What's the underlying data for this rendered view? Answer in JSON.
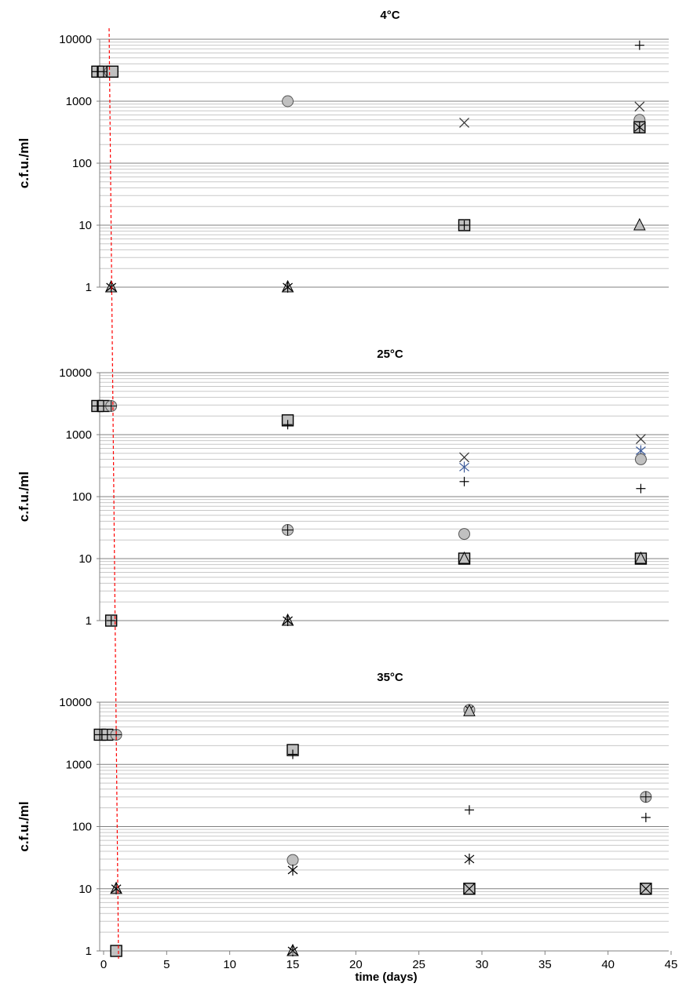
{
  "chart_data": {
    "type": "scatter",
    "xlabel": "time (days)",
    "x_ticks": [
      "0",
      "5",
      "10",
      "15",
      "20",
      "25",
      "30",
      "35",
      "40",
      "45"
    ],
    "xlim": [
      0,
      45
    ],
    "y_scale": "log",
    "y_ticks": [
      "1",
      "10",
      "100",
      "1000",
      "10000"
    ],
    "ylim": [
      1,
      10000
    ],
    "grid": true,
    "legend": "none",
    "reference_line": {
      "color": "#ff0000",
      "style": "dashed"
    },
    "panels": [
      {
        "title": "4°C",
        "ylabel": "c.f.u./ml",
        "points": [
          {
            "x": -0.5,
            "y": 3000,
            "marker": "square-plus"
          },
          {
            "x": 0,
            "y": 3000,
            "marker": "square-plus"
          },
          {
            "x": 0.5,
            "y": 3000,
            "marker": "circle-plus"
          },
          {
            "x": 0.7,
            "y": 3000,
            "marker": "square"
          },
          {
            "x": 0.6,
            "y": 1,
            "marker": "triangle"
          },
          {
            "x": 0.6,
            "y": 1,
            "marker": "star"
          },
          {
            "x": 14.6,
            "y": 1000,
            "marker": "circle"
          },
          {
            "x": 14.6,
            "y": 1,
            "marker": "triangle"
          },
          {
            "x": 14.6,
            "y": 1,
            "marker": "star"
          },
          {
            "x": 28.6,
            "y": 450,
            "marker": "x"
          },
          {
            "x": 28.6,
            "y": 10,
            "marker": "square"
          },
          {
            "x": 28.6,
            "y": 10,
            "marker": "plus"
          },
          {
            "x": 42.5,
            "y": 8000,
            "marker": "plus"
          },
          {
            "x": 42.5,
            "y": 820,
            "marker": "x"
          },
          {
            "x": 42.5,
            "y": 500,
            "marker": "circle"
          },
          {
            "x": 42.5,
            "y": 380,
            "marker": "square"
          },
          {
            "x": 42.5,
            "y": 380,
            "marker": "star"
          },
          {
            "x": 42.5,
            "y": 10,
            "marker": "triangle"
          }
        ]
      },
      {
        "title": "25°C",
        "ylabel": "c.f.u./ml",
        "points": [
          {
            "x": -0.5,
            "y": 2900,
            "marker": "square-plus"
          },
          {
            "x": 0,
            "y": 2900,
            "marker": "square-plus"
          },
          {
            "x": 0.6,
            "y": 2900,
            "marker": "circle-plus"
          },
          {
            "x": 0.6,
            "y": 1,
            "marker": "square"
          },
          {
            "x": 0.6,
            "y": 1,
            "marker": "plus"
          },
          {
            "x": 14.6,
            "y": 1700,
            "marker": "square"
          },
          {
            "x": 14.6,
            "y": 1450,
            "marker": "plus"
          },
          {
            "x": 14.6,
            "y": 29,
            "marker": "circle-plus"
          },
          {
            "x": 14.6,
            "y": 1,
            "marker": "triangle"
          },
          {
            "x": 14.6,
            "y": 1,
            "marker": "star"
          },
          {
            "x": 28.6,
            "y": 430,
            "marker": "x"
          },
          {
            "x": 28.6,
            "y": 300,
            "marker": "star-blue"
          },
          {
            "x": 28.6,
            "y": 175,
            "marker": "plus"
          },
          {
            "x": 28.6,
            "y": 25,
            "marker": "circle"
          },
          {
            "x": 28.6,
            "y": 10,
            "marker": "square"
          },
          {
            "x": 28.6,
            "y": 10,
            "marker": "triangle"
          },
          {
            "x": 42.6,
            "y": 850,
            "marker": "x"
          },
          {
            "x": 42.6,
            "y": 550,
            "marker": "star-blue"
          },
          {
            "x": 42.6,
            "y": 400,
            "marker": "circle"
          },
          {
            "x": 42.6,
            "y": 135,
            "marker": "plus"
          },
          {
            "x": 42.6,
            "y": 10,
            "marker": "square"
          },
          {
            "x": 42.6,
            "y": 10,
            "marker": "triangle"
          }
        ]
      },
      {
        "title": "35°C",
        "ylabel": "c.f.u./ml",
        "points": [
          {
            "x": -0.3,
            "y": 3000,
            "marker": "square-plus"
          },
          {
            "x": 0.3,
            "y": 3000,
            "marker": "square-plus"
          },
          {
            "x": 1.0,
            "y": 3000,
            "marker": "circle-plus"
          },
          {
            "x": 1.0,
            "y": 10,
            "marker": "triangle"
          },
          {
            "x": 1.0,
            "y": 10,
            "marker": "star"
          },
          {
            "x": 1.0,
            "y": 1,
            "marker": "square"
          },
          {
            "x": 15,
            "y": 1700,
            "marker": "square"
          },
          {
            "x": 15,
            "y": 1450,
            "marker": "plus"
          },
          {
            "x": 15,
            "y": 29,
            "marker": "circle"
          },
          {
            "x": 15,
            "y": 20,
            "marker": "star"
          },
          {
            "x": 15,
            "y": 1,
            "marker": "triangle"
          },
          {
            "x": 15,
            "y": 1,
            "marker": "star"
          },
          {
            "x": 29,
            "y": 7500,
            "marker": "circle-x"
          },
          {
            "x": 29,
            "y": 7200,
            "marker": "triangle"
          },
          {
            "x": 29,
            "y": 185,
            "marker": "plus"
          },
          {
            "x": 29,
            "y": 30,
            "marker": "star"
          },
          {
            "x": 29,
            "y": 10,
            "marker": "square-x"
          },
          {
            "x": 43,
            "y": 300,
            "marker": "circle-plus"
          },
          {
            "x": 43,
            "y": 140,
            "marker": "plus"
          },
          {
            "x": 43,
            "y": 10,
            "marker": "square-x"
          }
        ]
      }
    ]
  }
}
